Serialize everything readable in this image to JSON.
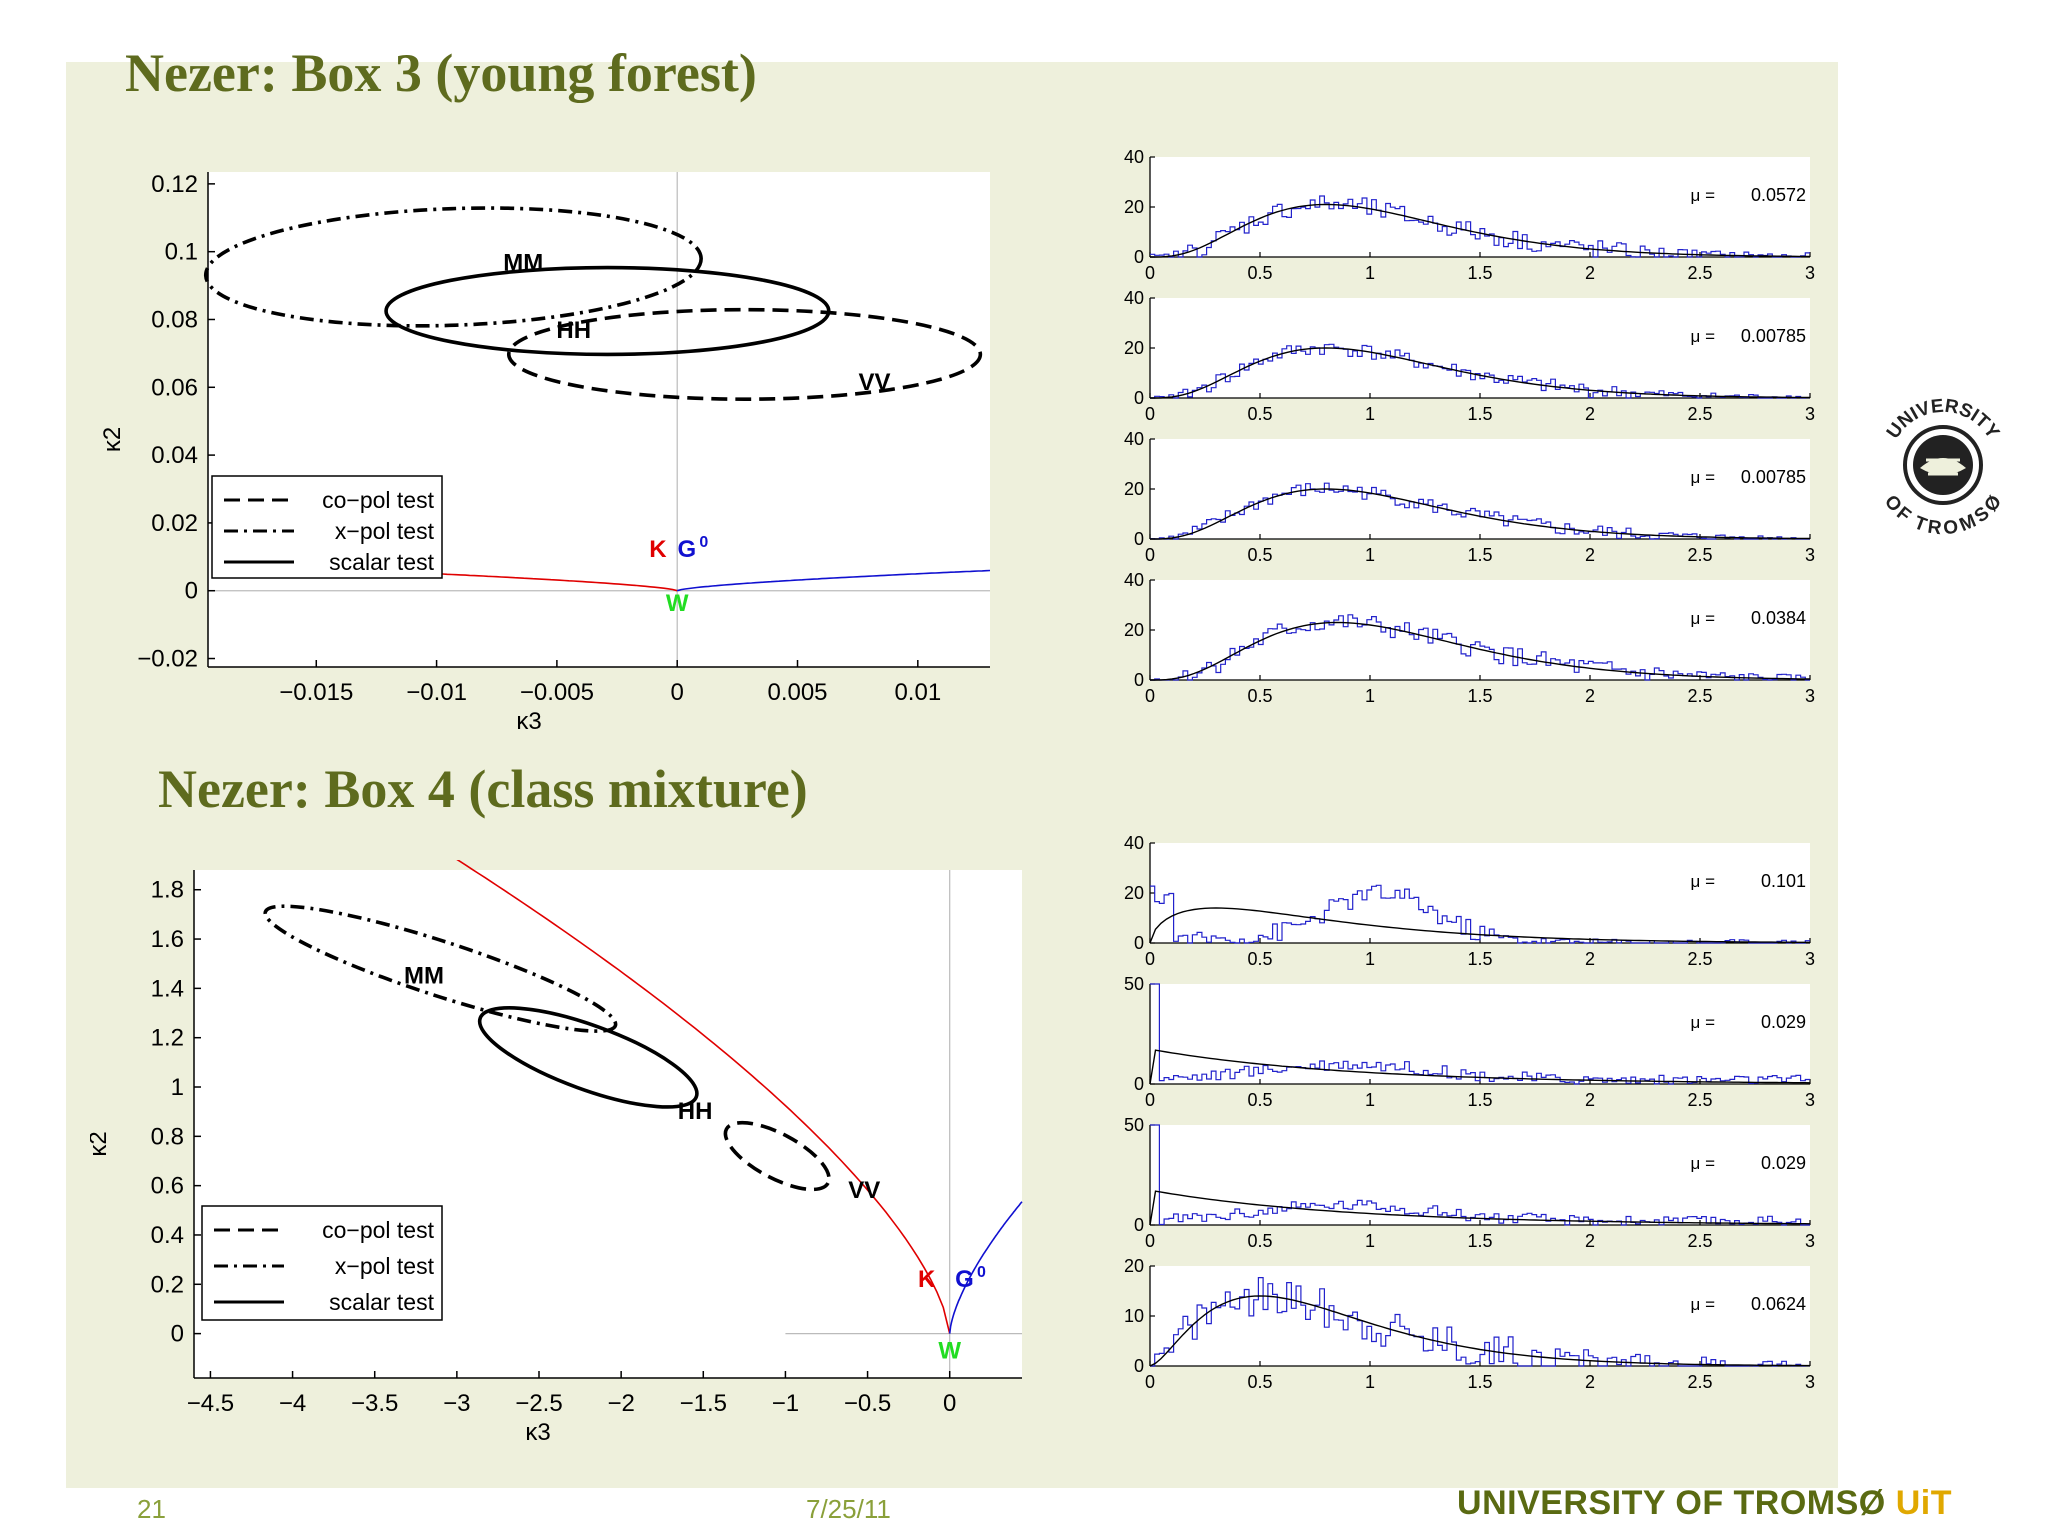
{
  "slide": {
    "title_top": "Nezer: Box 3 (young forest)",
    "title_bottom": "Nezer: Box 4 (class mixture)",
    "page_number": "21",
    "date": "7/25/11",
    "university_text": "UNIVERSITY OF TROMSØ",
    "university_abbrev": "UiT",
    "seal_text_top": "UNIVERSITY",
    "seal_text_bottom": "OF TROMSØ"
  },
  "colors": {
    "title": "#5e6b1e",
    "K_curve": "#e00000",
    "G_curve": "#1010d0",
    "W_label": "#22dd22",
    "hist": "#2222cc",
    "fit": "#000000",
    "background": "#eef0dc"
  },
  "chart_data": [
    {
      "type": "scatter",
      "id": "box3-k2-k3",
      "xlabel": "κ3",
      "ylabel": "κ2",
      "xlim": [
        -0.0195,
        0.013
      ],
      "ylim": [
        -0.0225,
        0.1235
      ],
      "xticks": [
        -0.015,
        -0.01,
        -0.005,
        0,
        0.005,
        0.01
      ],
      "xtick_labels": [
        "−0.015",
        "−0.01",
        "−0.005",
        "0",
        "0.005",
        "0.01"
      ],
      "yticks": [
        -0.02,
        0,
        0.02,
        0.04,
        0.06,
        0.08,
        0.1,
        0.12
      ],
      "ytick_labels": [
        "−0.02",
        "0",
        "0.02",
        "0.04",
        "0.06",
        "0.08",
        "0.1",
        "0.12"
      ],
      "curves": [
        {
          "name": "K",
          "color": "#e00000",
          "x_range": [
            -0.015,
            0
          ],
          "k": 0.00125
        },
        {
          "name": "G0",
          "color": "#1010d0",
          "x_range": [
            0,
            0.013
          ],
          "k": 0.00125
        }
      ],
      "ellipses": [
        {
          "test": "co-pol",
          "label": "VV",
          "cx": 0.0028,
          "cy": 0.0697,
          "rx": 0.0098,
          "ry": 0.0132,
          "angle": 0
        },
        {
          "test": "x-pol",
          "label": "MM",
          "cx": -0.0093,
          "cy": 0.0955,
          "rx": 0.0103,
          "ry": 0.0172,
          "angle": -2
        },
        {
          "test": "scalar",
          "label": "HH",
          "cx": -0.0029,
          "cy": 0.0825,
          "rx": 0.0092,
          "ry": 0.0128,
          "angle": 0
        }
      ],
      "point_labels": [
        {
          "text": "MM",
          "x": -0.0064,
          "y": 0.0945
        },
        {
          "text": "HH",
          "x": -0.0043,
          "y": 0.0745
        },
        {
          "text": "VV",
          "x": 0.0082,
          "y": 0.0592
        },
        {
          "text": "K",
          "x": -0.0008,
          "y": 0.01,
          "color": "#e00000"
        },
        {
          "text": "G",
          "sup": "0",
          "x": 0.0004,
          "y": 0.01,
          "color": "#1010d0"
        },
        {
          "text": "W",
          "x": 0,
          "y": -0.006,
          "color": "#22dd22"
        }
      ],
      "legend": {
        "position": "bottom-left",
        "entries": [
          {
            "label": "co−pol test",
            "style": "dashed"
          },
          {
            "label": "x−pol test",
            "style": "dashdot"
          },
          {
            "label": "scalar test",
            "style": "solid"
          }
        ]
      }
    },
    {
      "type": "scatter",
      "id": "box4-k2-k3",
      "xlabel": "κ3",
      "ylabel": "κ2",
      "xlim": [
        -4.6,
        0.44
      ],
      "ylim": [
        -0.18,
        1.88
      ],
      "xticks": [
        -4.5,
        -4,
        -3.5,
        -3,
        -2.5,
        -2,
        -1.5,
        -1,
        -0.5,
        0
      ],
      "xtick_labels": [
        "−4.5",
        "−4",
        "−3.5",
        "−3",
        "−2.5",
        "−2",
        "−1.5",
        "−1",
        "−0.5",
        "0"
      ],
      "yticks": [
        0,
        0.2,
        0.4,
        0.6,
        0.8,
        1,
        1.2,
        1.4,
        1.6,
        1.8
      ],
      "ytick_labels": [
        "0",
        "0.2",
        "0.4",
        "0.6",
        "0.8",
        "1",
        "1.2",
        "1.4",
        "1.6",
        "1.8"
      ],
      "curves": [
        {
          "name": "K",
          "color": "#e00000",
          "x_range": [
            -3.1,
            0
          ],
          "k": 0.79
        },
        {
          "name": "G0",
          "color": "#1010d0",
          "x_range": [
            0,
            0.44
          ],
          "k": 0.79
        }
      ],
      "ellipses": [
        {
          "test": "co-pol",
          "label": "VV",
          "cx": -1.05,
          "cy": 0.72,
          "rx": 0.35,
          "ry": 0.09,
          "angle": 28
        },
        {
          "test": "x-pol",
          "label": "MM",
          "cx": -3.1,
          "cy": 1.48,
          "rx": 1.12,
          "ry": 0.11,
          "angle": 18
        },
        {
          "test": "scalar",
          "label": "HH",
          "cx": -2.2,
          "cy": 1.12,
          "rx": 0.7,
          "ry": 0.13,
          "angle": 20
        }
      ],
      "point_labels": [
        {
          "text": "MM",
          "x": -3.2,
          "y": 1.42
        },
        {
          "text": "HH",
          "x": -1.55,
          "y": 0.87
        },
        {
          "text": "VV",
          "x": -0.52,
          "y": 0.55
        },
        {
          "text": "K",
          "x": -0.14,
          "y": 0.19,
          "color": "#e00000"
        },
        {
          "text": "G",
          "sup": "0",
          "x": 0.09,
          "y": 0.19,
          "color": "#1010d0"
        },
        {
          "text": "W",
          "x": 0,
          "y": -0.1,
          "color": "#22dd22"
        }
      ],
      "legend": {
        "position": "bottom-left",
        "entries": [
          {
            "label": "co−pol test",
            "style": "dashed"
          },
          {
            "label": "x−pol test",
            "style": "dashdot"
          },
          {
            "label": "scalar test",
            "style": "solid"
          }
        ]
      }
    },
    {
      "type": "bar",
      "subtype": "histogram",
      "group": "box3",
      "xlim": [
        0,
        3
      ],
      "xticks": [
        0,
        0.5,
        1,
        1.5,
        2,
        2.5,
        3
      ],
      "xtick_labels": [
        "0",
        "0.5",
        "1",
        "1.5",
        "2",
        "2.5",
        "3"
      ],
      "panels": [
        {
          "ymax": 40,
          "yticks": [
            0,
            20,
            40
          ],
          "mu_label": "μ =",
          "mu": "0.0572",
          "peak_x": 0.8,
          "peak_y": 21,
          "shape": "gamma",
          "noise": 4,
          "spike": 0
        },
        {
          "ymax": 40,
          "yticks": [
            0,
            20,
            40
          ],
          "mu_label": "μ =",
          "mu": "0.00785",
          "peak_x": 0.8,
          "peak_y": 20,
          "shape": "gamma",
          "noise": 3,
          "spike": 0
        },
        {
          "ymax": 40,
          "yticks": [
            0,
            20,
            40
          ],
          "mu_label": "μ =",
          "mu": "0.00785",
          "peak_x": 0.8,
          "peak_y": 20,
          "shape": "gamma",
          "noise": 3,
          "spike": 0
        },
        {
          "ymax": 40,
          "yticks": [
            0,
            20,
            40
          ],
          "mu_label": "μ =",
          "mu": "0.0384",
          "peak_x": 0.85,
          "peak_y": 23,
          "shape": "gamma",
          "noise": 4,
          "spike": 0
        }
      ]
    },
    {
      "type": "bar",
      "subtype": "histogram",
      "group": "box4",
      "xlim": [
        0,
        3
      ],
      "xticks": [
        0,
        0.5,
        1,
        1.5,
        2,
        2.5,
        3
      ],
      "xtick_labels": [
        "0",
        "0.5",
        "1",
        "1.5",
        "2",
        "2.5",
        "3"
      ],
      "panels": [
        {
          "ymax": 40,
          "yticks": [
            0,
            20,
            40
          ],
          "mu_label": "μ =",
          "mu": "0.101",
          "peak_x": 0.3,
          "peak_y": 14,
          "shape": "bimodal",
          "noise": 4,
          "spike": 20
        },
        {
          "ymax": 50,
          "yticks": [
            0,
            50
          ],
          "mu_label": "μ =",
          "mu": "0.029",
          "peak_x": 0.05,
          "peak_y": 17,
          "shape": "decay",
          "noise": 3,
          "spike": 50
        },
        {
          "ymax": 50,
          "yticks": [
            0,
            50
          ],
          "mu_label": "μ =",
          "mu": "0.029",
          "peak_x": 0.05,
          "peak_y": 17,
          "shape": "decay",
          "noise": 3,
          "spike": 50
        },
        {
          "ymax": 20,
          "yticks": [
            0,
            10,
            20
          ],
          "mu_label": "μ =",
          "mu": "0.0624",
          "peak_x": 0.5,
          "peak_y": 14,
          "shape": "gamma-wide",
          "noise": 4,
          "spike": 0
        }
      ]
    }
  ]
}
